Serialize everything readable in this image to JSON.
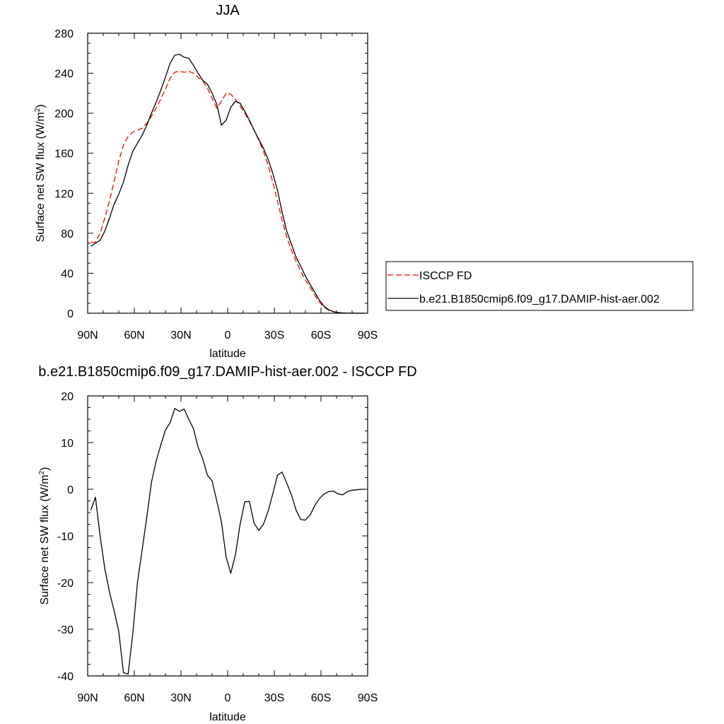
{
  "chart_data": [
    {
      "type": "line",
      "title": "JJA",
      "xlabel": "latitude",
      "ylabel": "Surface net SW flux (W/m",
      "ylabel_sup": "2",
      "ylabel_end": ")",
      "xlim": [
        90,
        -90
      ],
      "ylim": [
        0,
        280
      ],
      "xticks": [
        90,
        60,
        30,
        0,
        -30,
        -60,
        -90
      ],
      "xtick_labels": [
        "90N",
        "60N",
        "30N",
        "0",
        "30S",
        "60S",
        "90S"
      ],
      "yticks": [
        0,
        40,
        80,
        120,
        160,
        200,
        240,
        280
      ],
      "ytick_labels": [
        "0",
        "40",
        "80",
        "120",
        "160",
        "200",
        "240",
        "280"
      ],
      "legend_position": "right",
      "series": [
        {
          "name": "ISCCP FD",
          "color": "#ff0000",
          "dash": "dashed",
          "x": [
            88,
            85,
            82,
            79,
            76,
            73,
            70,
            67,
            64,
            61,
            58,
            55,
            52,
            49,
            46,
            43,
            40,
            37,
            34,
            31,
            28,
            25,
            22,
            19,
            16,
            13,
            10,
            7,
            4,
            1,
            -2,
            -5,
            -8,
            -11,
            -14,
            -17,
            -20,
            -23,
            -26,
            -29,
            -32,
            -35,
            -38,
            -41,
            -44,
            -47,
            -50,
            -53,
            -56,
            -59,
            -62,
            -65,
            -68,
            -71,
            -74,
            -77,
            -80,
            -83,
            -86,
            -88
          ],
          "y": [
            71,
            71,
            80,
            95,
            112,
            132,
            152,
            168,
            177,
            181,
            183,
            185,
            190,
            197,
            205,
            214,
            224,
            235,
            241,
            242,
            241,
            242,
            240,
            236,
            232,
            225,
            215,
            205,
            212,
            220,
            219,
            214,
            207,
            200,
            192,
            183,
            173,
            162,
            148,
            131,
            112,
            93,
            76,
            63,
            52,
            42,
            33,
            26,
            18,
            11,
            6,
            3,
            1.5,
            0.7,
            0.3,
            0.1,
            0.05,
            0,
            0,
            0
          ]
        },
        {
          "name": "b.e21.B1850cmip6.f09_g17.DAMIP-hist-aer.002",
          "color": "#000000",
          "dash": "solid",
          "x": [
            88,
            85,
            82,
            79,
            76,
            73,
            70,
            67,
            64,
            61,
            58,
            55,
            52,
            49,
            46,
            43,
            40,
            37,
            34,
            31,
            28,
            25,
            22,
            19,
            16,
            13,
            10,
            7,
            4,
            1,
            -2,
            -5,
            -8,
            -11,
            -14,
            -17,
            -20,
            -23,
            -26,
            -29,
            -32,
            -35,
            -38,
            -41,
            -44,
            -47,
            -50,
            -53,
            -56,
            -59,
            -62,
            -65,
            -68,
            -71,
            -74,
            -77,
            -80,
            -83,
            -86,
            -88
          ],
          "y": [
            67,
            70,
            73,
            82,
            95,
            109,
            119,
            131,
            148,
            162,
            170,
            178,
            188,
            200,
            211,
            223,
            236,
            250,
            258,
            259,
            256,
            255,
            248,
            240,
            233,
            229,
            220,
            209,
            188,
            193,
            206,
            212,
            210,
            202,
            193,
            183,
            174,
            165,
            154,
            140,
            123,
            101,
            82,
            69,
            56,
            47,
            37,
            29,
            21,
            13,
            7,
            3.5,
            1.5,
            0.7,
            0.3,
            0.1,
            0.05,
            0,
            0,
            0
          ]
        }
      ]
    },
    {
      "type": "line",
      "title": "b.e21.B1850cmip6.f09_g17.DAMIP-hist-aer.002 - ISCCP FD",
      "xlabel": "latitude",
      "ylabel": "Surface net SW flux (W/m",
      "ylabel_sup": "2",
      "ylabel_end": ")",
      "xlim": [
        90,
        -90
      ],
      "ylim": [
        -40,
        20
      ],
      "xticks": [
        90,
        60,
        30,
        0,
        -30,
        -60,
        -90
      ],
      "xtick_labels": [
        "90N",
        "60N",
        "30N",
        "0",
        "30S",
        "60S",
        "90S"
      ],
      "yticks": [
        -40,
        -30,
        -20,
        -10,
        0,
        10,
        20
      ],
      "ytick_labels": [
        "-40",
        "-30",
        "-20",
        "-10",
        "0",
        "10",
        "20"
      ],
      "series": [
        {
          "color": "#000000",
          "dash": "solid",
          "x": [
            88,
            85,
            82,
            79,
            76,
            73,
            70,
            67,
            64,
            61,
            58,
            55,
            52,
            49,
            46,
            43,
            40,
            37,
            34,
            31,
            28,
            25,
            22,
            19,
            16,
            13,
            10,
            7,
            4,
            1,
            -2,
            -5,
            -8,
            -11,
            -14,
            -17,
            -20,
            -23,
            -26,
            -29,
            -32,
            -35,
            -38,
            -41,
            -44,
            -47,
            -50,
            -53,
            -56,
            -59,
            -62,
            -65,
            -68,
            -71,
            -74,
            -77,
            -80,
            -83,
            -86,
            -88
          ],
          "y": [
            -4.5,
            -1.7,
            -10,
            -17,
            -22,
            -26,
            -30.5,
            -39.3,
            -39.6,
            -31,
            -20,
            -13,
            -6,
            1.5,
            6,
            9.5,
            12.7,
            14.3,
            17.3,
            16.7,
            17.2,
            15,
            13,
            9,
            6.5,
            3,
            1.8,
            -2.5,
            -7,
            -14.5,
            -18,
            -14,
            -7.5,
            -2.7,
            -2.6,
            -7.3,
            -8.8,
            -7.5,
            -4.7,
            -1,
            3,
            3.7,
            1.3,
            -1.2,
            -4.5,
            -6.5,
            -6.6,
            -5.5,
            -3.5,
            -2,
            -1,
            -0.5,
            -0.4,
            -1,
            -1.2,
            -0.5,
            -0.2,
            -0.1,
            0,
            0
          ]
        }
      ]
    }
  ]
}
